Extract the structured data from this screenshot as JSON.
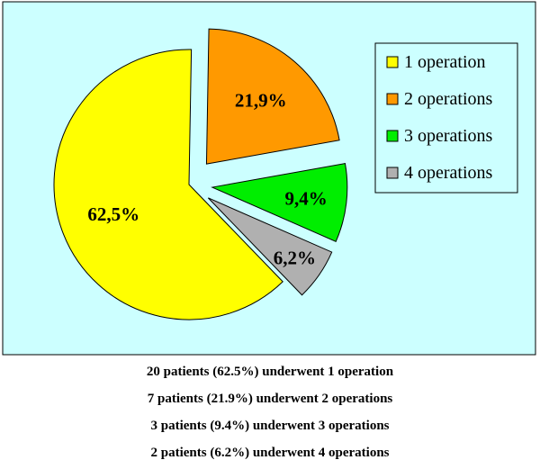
{
  "chart_data": {
    "type": "pie",
    "categories": [
      "1 operation",
      "2 operations",
      "3 operations",
      "4 operations"
    ],
    "values": [
      62.5,
      21.9,
      9.4,
      6.2
    ],
    "value_labels": [
      "62,5%",
      "21,9%",
      "9,4%",
      "6,2%"
    ],
    "colors": [
      "#ffff00",
      "#ff9900",
      "#00ee00",
      "#b0b0b0"
    ],
    "exploded": true,
    "legend": {
      "position": "top-right",
      "entries": [
        "1 operation",
        "2 operations",
        "3 operations",
        "4 operations"
      ]
    },
    "background": "#ccffff"
  },
  "captions": [
    "20 patients (62.5%) underwent 1 operation",
    "7 patients (21.9%) underwent 2 operations",
    "3 patients (9.4%) underwent 3 operations",
    "2 patients (6.2%) underwent 4 operations"
  ]
}
